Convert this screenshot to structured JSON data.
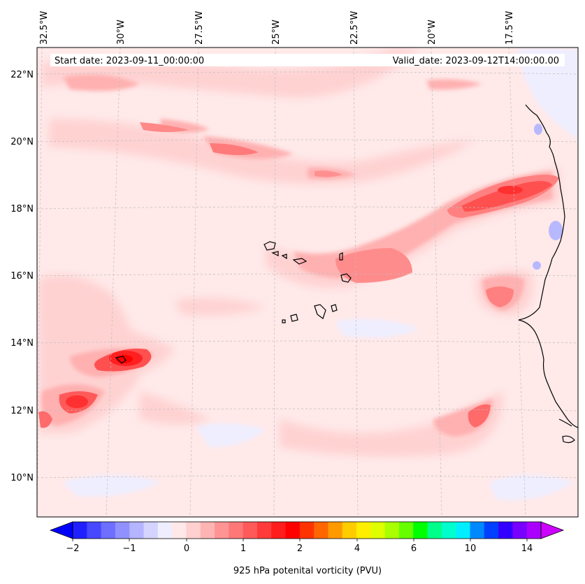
{
  "header": {
    "start_date": "Start date: 2023-09-11_00:00:00",
    "valid_date": "Valid_date: 2023-09-12T14:00:00.00"
  },
  "longitude_labels": [
    "32.5°W",
    "30°W",
    "27.5°W",
    "25°W",
    "22.5°W",
    "20°W",
    "17.5°W"
  ],
  "latitude_labels": [
    "22°N",
    "20°N",
    "18°N",
    "16°N",
    "14°N",
    "12°N",
    "10°N"
  ],
  "colorbar": {
    "title": "925 hPa potenital vorticity (PVU)",
    "tick_labels": [
      "−2",
      "−1",
      "0",
      "1",
      "2",
      "4",
      "6",
      "10",
      "14"
    ],
    "colors": [
      "#0000ff",
      "#2020ff",
      "#4848ff",
      "#6e6eff",
      "#9090ff",
      "#b4b4ff",
      "#d4d4ff",
      "#eeeeff",
      "#ffe8e8",
      "#ffd0d0",
      "#ffb4b4",
      "#ff9494",
      "#ff7878",
      "#ff5a5a",
      "#ff3a3a",
      "#ff1c1c",
      "#ff0000",
      "#ff3300",
      "#ff6600",
      "#ff9900",
      "#ffcc00",
      "#ffee00",
      "#ddff00",
      "#aaff00",
      "#66ff00",
      "#00ff00",
      "#00ff88",
      "#00ffcc",
      "#00eeff",
      "#0088ff",
      "#0040ff",
      "#3300ff",
      "#7700ff",
      "#aa00ff",
      "#cc00ff"
    ]
  }
}
